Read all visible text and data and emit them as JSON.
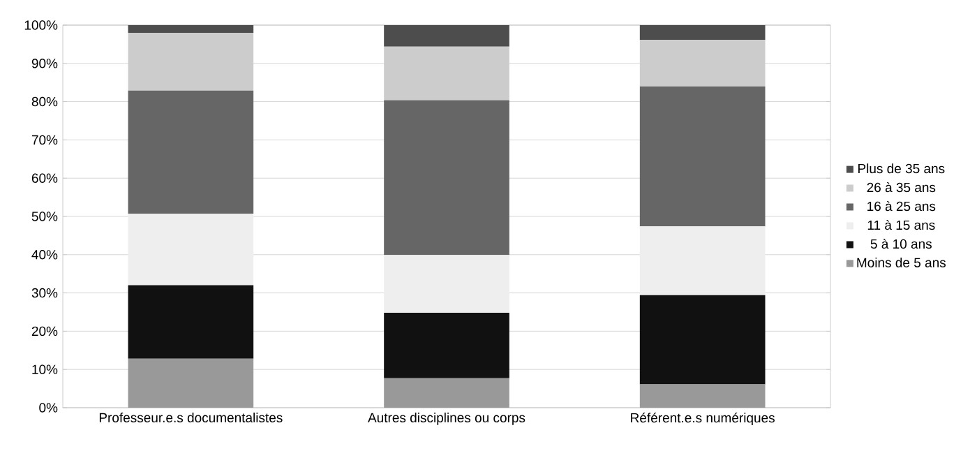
{
  "chart_data": {
    "type": "bar",
    "stacked": true,
    "categories": [
      "Professeur.e.s documentalistes",
      "Autres disciplines ou corps",
      "Référent.e.s numériques"
    ],
    "series": [
      {
        "name": "Moins de 5 ans",
        "color": "#999999",
        "values": [
          12.8,
          7.7,
          6.1
        ]
      },
      {
        "name": "5 à 10 ans",
        "color": "#111111",
        "values": [
          19.2,
          17.1,
          23.3
        ]
      },
      {
        "name": "11 à 15 ans",
        "color": "#eeeeee",
        "values": [
          18.7,
          15.1,
          18.0
        ]
      },
      {
        "name": "16 à 25 ans",
        "color": "#666666",
        "values": [
          32.2,
          40.5,
          36.6
        ]
      },
      {
        "name": "26 à 35 ans",
        "color": "#cccccc",
        "values": [
          15.1,
          14.0,
          12.1
        ]
      },
      {
        "name": "Plus de 35 ans",
        "color": "#4d4d4d",
        "values": [
          2.0,
          5.7,
          3.9
        ]
      }
    ],
    "ylim": [
      0,
      100
    ],
    "yticks": [
      {
        "value": 0,
        "label": "0%"
      },
      {
        "value": 10,
        "label": "10%"
      },
      {
        "value": 20,
        "label": "20%"
      },
      {
        "value": 30,
        "label": "30%"
      },
      {
        "value": 40,
        "label": "40%"
      },
      {
        "value": 50,
        "label": "50%"
      },
      {
        "value": 60,
        "label": "60%"
      },
      {
        "value": 70,
        "label": "70%"
      },
      {
        "value": 80,
        "label": "80%"
      },
      {
        "value": 90,
        "label": "90%"
      },
      {
        "value": 100,
        "label": "100%"
      }
    ],
    "grid": "y",
    "legend": "right"
  }
}
